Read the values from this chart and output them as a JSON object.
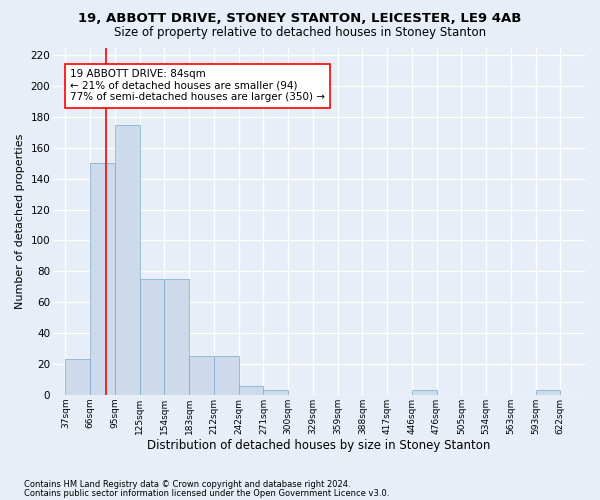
{
  "title1": "19, ABBOTT DRIVE, STONEY STANTON, LEICESTER, LE9 4AB",
  "title2": "Size of property relative to detached houses in Stoney Stanton",
  "xlabel": "Distribution of detached houses by size in Stoney Stanton",
  "ylabel": "Number of detached properties",
  "footer1": "Contains HM Land Registry data © Crown copyright and database right 2024.",
  "footer2": "Contains public sector information licensed under the Open Government Licence v3.0.",
  "bin_labels": [
    "37sqm",
    "66sqm",
    "95sqm",
    "125sqm",
    "154sqm",
    "183sqm",
    "212sqm",
    "242sqm",
    "271sqm",
    "300sqm",
    "329sqm",
    "359sqm",
    "388sqm",
    "417sqm",
    "446sqm",
    "476sqm",
    "505sqm",
    "534sqm",
    "563sqm",
    "593sqm",
    "622sqm"
  ],
  "bar_values": [
    23,
    150,
    175,
    75,
    75,
    25,
    25,
    6,
    3,
    0,
    0,
    0,
    0,
    0,
    3,
    0,
    0,
    0,
    0,
    3,
    0
  ],
  "bar_color": "#ccdaeb",
  "bar_edge_color": "#7aaac8",
  "vline_color": "red",
  "annotation_text": "19 ABBOTT DRIVE: 84sqm\n← 21% of detached houses are smaller (94)\n77% of semi-detached houses are larger (350) →",
  "annotation_box_color": "white",
  "annotation_box_edge_color": "red",
  "ylim": [
    0,
    225
  ],
  "yticks": [
    0,
    20,
    40,
    60,
    80,
    100,
    120,
    140,
    160,
    180,
    200,
    220
  ],
  "background_color": "#e8eef8",
  "grid_color": "white",
  "title1_fontsize": 9.5,
  "title2_fontsize": 8.5,
  "xlabel_fontsize": 8.5,
  "ylabel_fontsize": 8
}
